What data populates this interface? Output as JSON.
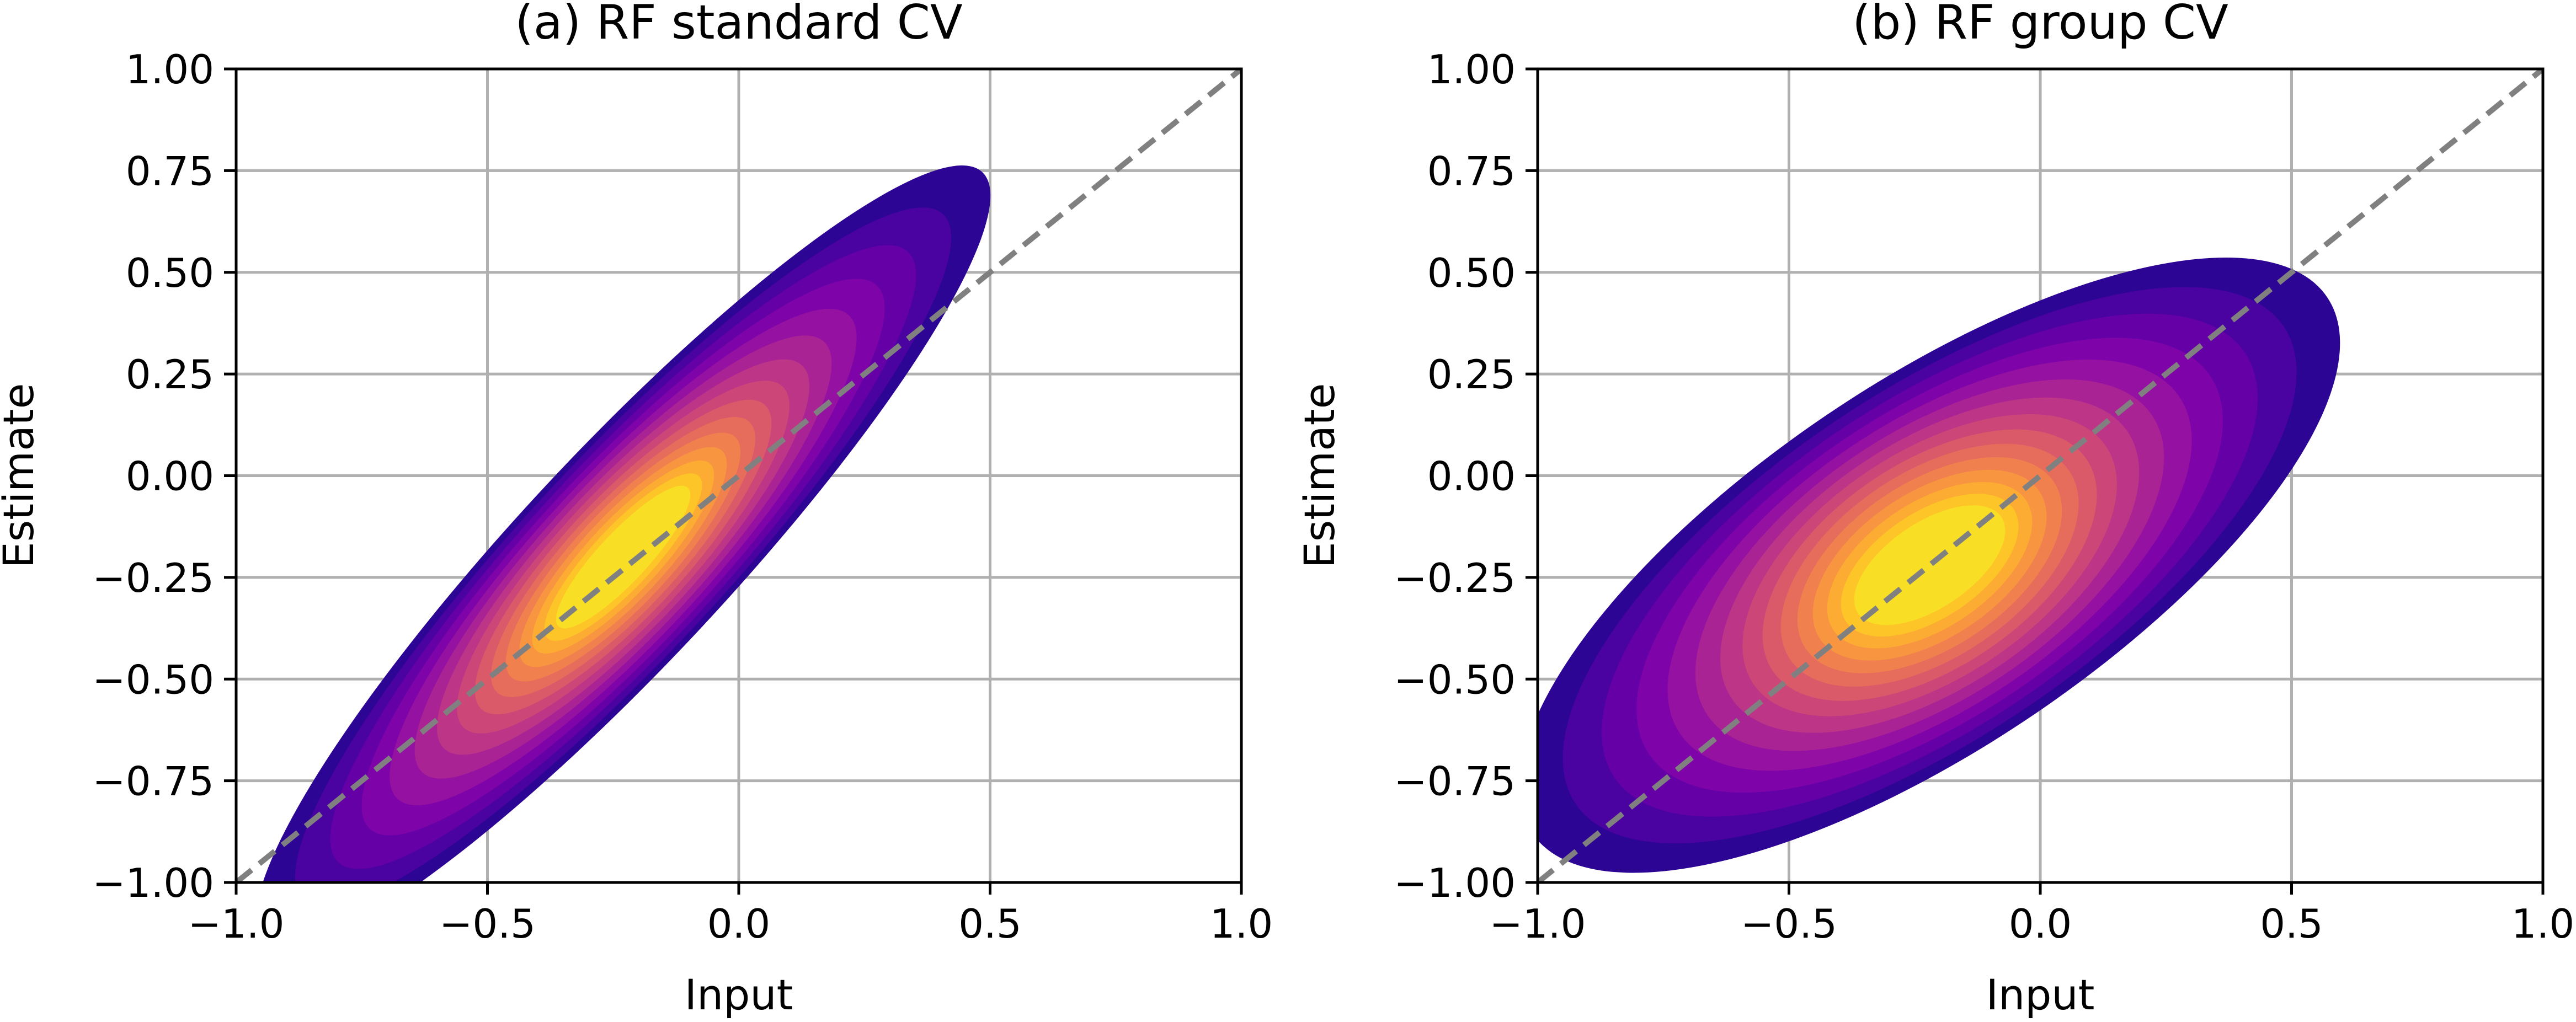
{
  "chart_data": [
    {
      "type": "heatmap",
      "subtype": "2d-kde-filled-contour",
      "title": "(a) RF standard CV",
      "xlabel": "Input",
      "ylabel": "Estimate",
      "xlim": [
        -1.0,
        1.0
      ],
      "ylim": [
        -1.0,
        1.0
      ],
      "xticks": [
        "−1.0",
        "−0.5",
        "0.0",
        "0.5",
        "1.0"
      ],
      "xtick_values": [
        -1.0,
        -0.5,
        0.0,
        0.5,
        1.0
      ],
      "yticks": [
        "−1.00",
        "−0.75",
        "−0.50",
        "−0.25",
        "0.00",
        "0.25",
        "0.50",
        "0.75",
        "1.00"
      ],
      "ytick_values": [
        -1.0,
        -0.75,
        -0.5,
        -0.25,
        0.0,
        0.25,
        0.5,
        0.75,
        1.0
      ],
      "grid": true,
      "colormap": "plasma",
      "reference_line": {
        "x": [
          -1.0,
          1.0
        ],
        "y": [
          -1.0,
          1.0
        ],
        "style": "dashed",
        "color": "#808080"
      },
      "density": {
        "peak": [
          -0.23,
          -0.2
        ],
        "outer_extent": {
          "x": [
            -1.0,
            0.62
          ],
          "y": [
            -1.0,
            0.56
          ]
        },
        "major_axis_angle_deg": 47,
        "notes": "narrow ridge along the identity line"
      }
    },
    {
      "type": "heatmap",
      "subtype": "2d-kde-filled-contour",
      "title": "(b) RF group CV",
      "xlabel": "Input",
      "ylabel": "Estimate",
      "xlim": [
        -1.0,
        1.0
      ],
      "ylim": [
        -1.0,
        1.0
      ],
      "xticks": [
        "−1.0",
        "−0.5",
        "0.0",
        "0.5",
        "1.0"
      ],
      "xtick_values": [
        -1.0,
        -0.5,
        0.0,
        0.5,
        1.0
      ],
      "yticks": [
        "−1.00",
        "−0.75",
        "−0.50",
        "−0.25",
        "0.00",
        "0.25",
        "0.50",
        "0.75",
        "1.00"
      ],
      "ytick_values": [
        -1.0,
        -0.75,
        -0.5,
        -0.25,
        0.0,
        0.25,
        0.5,
        0.75,
        1.0
      ],
      "grid": true,
      "colormap": "plasma",
      "reference_line": {
        "x": [
          -1.0,
          1.0
        ],
        "y": [
          -1.0,
          1.0
        ],
        "style": "dashed",
        "color": "#808080"
      },
      "density": {
        "peak": [
          -0.22,
          -0.22
        ],
        "outer_extent": {
          "x": [
            -0.92,
            0.58
          ],
          "y": [
            -0.83,
            0.55
          ]
        },
        "major_axis_angle_deg": 34,
        "notes": "wider spread, flatter slope than identity line"
      }
    }
  ],
  "colors": {
    "plasma_levels": [
      "#2d0594",
      "#4a02a0",
      "#6500a7",
      "#7e03a8",
      "#9511a1",
      "#aa2395",
      "#bc3587",
      "#cc4778",
      "#da5a6a",
      "#e66c5c",
      "#f0804e",
      "#f89540",
      "#fdac33",
      "#fdc527",
      "#f8df25"
    ],
    "grid": "#b0b0b0",
    "reference_line": "#808080"
  }
}
